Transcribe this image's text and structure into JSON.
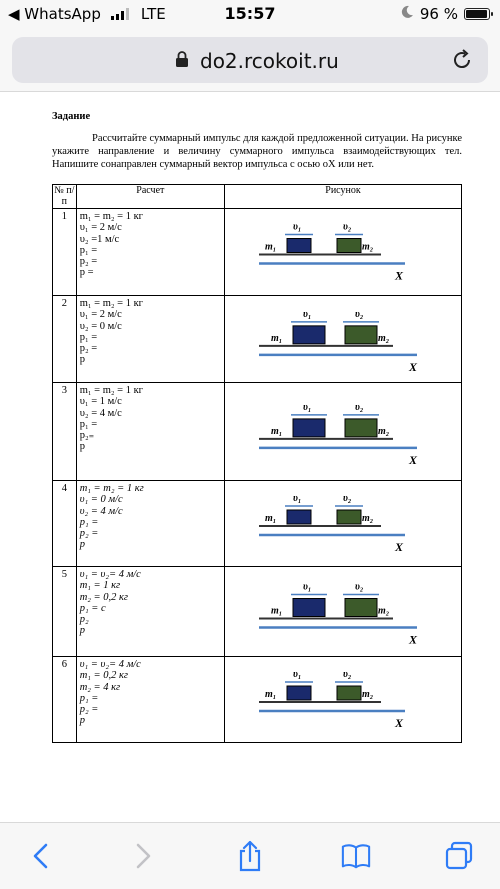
{
  "status_bar": {
    "back_app": "◀ WhatsApp",
    "carrier": "LTE",
    "time": "15:57",
    "battery": "96 %",
    "battery_level": 0.96
  },
  "browser": {
    "url": "do2.rcokoit.ru"
  },
  "document": {
    "title": "Задание",
    "instructions": "Рассчитайте суммарный импульс для каждой предложенной ситуации. На рисунке укажите направление и величину суммарного импульса взаимодействующих тел. Напишите сонаправлен суммарный вектор импульса с осью оХ или нет.",
    "table": {
      "headers": [
        "№ п/п",
        "Расчет",
        "Рисунок"
      ],
      "rows": [
        {
          "num": "1",
          "lines": [
            "m₁ = m₂ = 1 кг",
            "υ₁ = 2 м/с",
            "υ₂ =1 м/с",
            "p₁ =",
            "p₂ =",
            "p ="
          ]
        },
        {
          "num": "2",
          "lines": [
            "m₁ = m₂ = 1 кг",
            "υ₁ = 2 м/с",
            "υ₂ = 0 м/с",
            "p₁ =",
            "p₂ =",
            "p"
          ]
        },
        {
          "num": "3",
          "lines": [
            "m₁ = m₂ = 1 кг",
            "υ₁ = 1 м/с",
            "υ₂ = 4 м/с",
            "p₁ =",
            "p₂₌",
            "p"
          ]
        },
        {
          "num": "4",
          "lines": [
            "m₁ = m₂ = 1 кг",
            "υ₁ = 0 м/с",
            "υ₂ = 4 м/с",
            "p₁ =",
            "p₂ =",
            "p"
          ]
        },
        {
          "num": "5",
          "lines": [
            "υ₁ = υ₂= 4 м/с",
            "m₁ = 1 кг",
            "m₂ = 0,2 кг",
            "p₁ = c",
            "p₂",
            "p"
          ]
        },
        {
          "num": "6",
          "lines": [
            "υ₁ = υ₂= 4 м/с",
            "m₁ = 0,2 кг",
            "m₂ = 4 кг",
            "p₁ =",
            "p₂ =",
            "p"
          ]
        }
      ],
      "figure_labels": {
        "v1": "υ₁",
        "v2": "υ₂",
        "m1": "m₁",
        "m2": "m₂",
        "axis": "X"
      },
      "colors": {
        "block1": "#1a2a6c",
        "block2": "#3c5a2a",
        "arrow": "#4a7fc1"
      }
    }
  }
}
